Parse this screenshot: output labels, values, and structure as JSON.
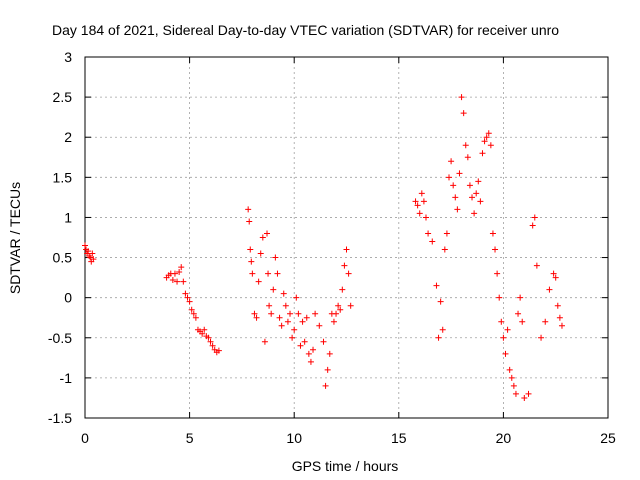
{
  "chart_data": {
    "type": "scatter",
    "title": "Day 184 of 2021, Sidereal Day-to-day VTEC variation (SDTVAR) for receiver unro",
    "xlabel": "GPS time / hours",
    "ylabel": "SDTVAR / TECUs",
    "xlim": [
      0,
      25
    ],
    "ylim": [
      -1.5,
      3
    ],
    "xticks": [
      0,
      5,
      10,
      15,
      20,
      25
    ],
    "xtick_labels": [
      "0",
      "5",
      "10",
      "15",
      "20",
      "25"
    ],
    "yticks": [
      -1.5,
      -1,
      -0.5,
      0,
      0.5,
      1,
      1.5,
      2,
      2.5,
      3
    ],
    "ytick_labels": [
      "-1.5",
      "-1",
      "-0.5",
      "0",
      "0.5",
      "1",
      "1.5",
      "2",
      "2.5",
      "3"
    ],
    "grid": true,
    "marker": "plus",
    "color": "#ff0000",
    "series": [
      {
        "name": "SDTVAR",
        "x": [
          0.0,
          0.05,
          0.1,
          0.15,
          0.2,
          0.25,
          0.3,
          0.35,
          0.4,
          3.9,
          4.0,
          4.1,
          4.2,
          4.3,
          4.4,
          4.5,
          4.6,
          4.7,
          4.8,
          4.9,
          5.0,
          5.1,
          5.2,
          5.3,
          5.4,
          5.5,
          5.6,
          5.7,
          5.8,
          5.9,
          6.0,
          6.1,
          6.2,
          6.3,
          6.4,
          7.8,
          7.85,
          7.9,
          7.95,
          8.0,
          8.1,
          8.2,
          8.3,
          8.4,
          8.5,
          8.6,
          8.7,
          8.75,
          8.8,
          8.9,
          9.0,
          9.1,
          9.2,
          9.3,
          9.4,
          9.5,
          9.6,
          9.7,
          9.8,
          9.9,
          10.0,
          10.1,
          10.2,
          10.3,
          10.4,
          10.5,
          10.6,
          10.7,
          10.8,
          10.9,
          11.0,
          11.2,
          11.4,
          11.5,
          11.6,
          11.7,
          11.8,
          11.9,
          12.0,
          12.1,
          12.2,
          12.3,
          12.4,
          12.5,
          12.6,
          12.7,
          15.8,
          15.9,
          16.0,
          16.1,
          16.2,
          16.3,
          16.4,
          16.6,
          16.8,
          16.9,
          17.0,
          17.1,
          17.2,
          17.3,
          17.4,
          17.5,
          17.6,
          17.7,
          17.8,
          17.9,
          18.0,
          18.1,
          18.2,
          18.3,
          18.4,
          18.5,
          18.6,
          18.7,
          18.8,
          18.9,
          19.0,
          19.1,
          19.2,
          19.3,
          19.4,
          19.5,
          19.6,
          19.7,
          19.8,
          19.9,
          20.0,
          20.1,
          20.2,
          20.3,
          20.4,
          20.5,
          20.6,
          20.7,
          20.8,
          20.9,
          21.0,
          21.2,
          21.4,
          21.5,
          21.6,
          21.8,
          22.0,
          22.2,
          22.4,
          22.5,
          22.6,
          22.7,
          22.8
        ],
        "y": [
          0.65,
          0.6,
          0.55,
          0.58,
          0.52,
          0.5,
          0.45,
          0.55,
          0.48,
          0.25,
          0.28,
          0.3,
          0.22,
          0.3,
          0.2,
          0.32,
          0.38,
          0.2,
          0.05,
          0.0,
          -0.05,
          -0.15,
          -0.2,
          -0.25,
          -0.4,
          -0.42,
          -0.45,
          -0.4,
          -0.48,
          -0.5,
          -0.55,
          -0.6,
          -0.65,
          -0.68,
          -0.66,
          1.1,
          0.95,
          0.6,
          0.45,
          0.3,
          -0.2,
          -0.25,
          0.2,
          0.55,
          0.75,
          -0.55,
          0.8,
          0.3,
          -0.1,
          -0.2,
          0.1,
          0.5,
          0.3,
          -0.25,
          -0.35,
          0.05,
          -0.1,
          -0.3,
          -0.2,
          -0.5,
          -0.4,
          0.0,
          -0.2,
          -0.6,
          -0.3,
          -0.55,
          -0.25,
          -0.7,
          -0.8,
          -0.65,
          -0.2,
          -0.35,
          -0.55,
          -1.1,
          -0.9,
          -0.7,
          -0.2,
          -0.3,
          -0.2,
          -0.1,
          -0.15,
          0.1,
          0.4,
          0.6,
          0.3,
          -0.1,
          1.2,
          1.15,
          1.05,
          1.3,
          1.2,
          1.0,
          0.8,
          0.7,
          0.15,
          -0.5,
          -0.05,
          -0.4,
          0.6,
          0.8,
          1.5,
          1.7,
          1.4,
          1.25,
          1.1,
          1.55,
          2.5,
          2.3,
          1.9,
          1.75,
          1.4,
          1.25,
          1.05,
          1.3,
          1.45,
          1.2,
          1.8,
          1.95,
          2.0,
          2.05,
          1.9,
          0.8,
          0.6,
          0.3,
          0.0,
          -0.3,
          -0.5,
          -0.7,
          -0.4,
          -0.9,
          -1.0,
          -1.1,
          -1.2,
          -0.2,
          0.0,
          -0.3,
          -1.25,
          -1.2,
          0.9,
          1.0,
          0.4,
          -0.5,
          -0.3,
          0.1,
          0.3,
          0.25,
          -0.1,
          -0.25,
          -0.35
        ]
      }
    ]
  }
}
